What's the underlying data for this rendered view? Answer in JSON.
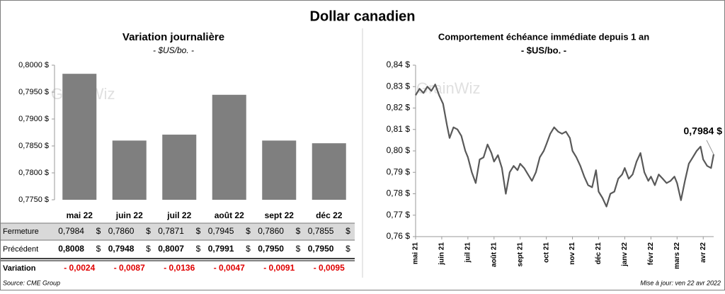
{
  "title": "Dollar canadien",
  "watermark": "GrainWiz",
  "source": "Source: CME Group",
  "updated": "Mise à jour: ven 22 avr 2022",
  "chart_data": [
    {
      "type": "bar",
      "title": "Variation  journalière",
      "subtitle": "- $US/bo. -",
      "categories": [
        "mai 22",
        "juin 22",
        "juil 22",
        "août 22",
        "sept 22",
        "déc 22"
      ],
      "values": [
        0.7984,
        0.786,
        0.7871,
        0.7945,
        0.786,
        0.7855
      ],
      "color": "#7f7f7f",
      "ylim": [
        0.775,
        0.8
      ],
      "yticks": [
        {
          "value": 0.775,
          "label": "0,7750 $"
        },
        {
          "value": 0.78,
          "label": "0,7800 $"
        },
        {
          "value": 0.785,
          "label": "0,7850 $"
        },
        {
          "value": 0.79,
          "label": "0,7900 $"
        },
        {
          "value": 0.795,
          "label": "0,7950 $"
        },
        {
          "value": 0.8,
          "label": "0,8000 $"
        }
      ]
    },
    {
      "type": "line",
      "title": "Comportement échéance immédiate depuis 1 an",
      "subtitle": "- $US/bo. -",
      "annotation": "0,7984 $",
      "color": "#595959",
      "x": [
        0,
        0.15,
        0.3,
        0.45,
        0.6,
        0.75,
        0.9,
        1.05,
        1.2,
        1.3,
        1.45,
        1.6,
        1.75,
        1.9,
        2.0,
        2.15,
        2.3,
        2.45,
        2.6,
        2.75,
        2.9,
        3.0,
        3.15,
        3.3,
        3.45,
        3.6,
        3.75,
        3.9,
        4.0,
        4.15,
        4.3,
        4.45,
        4.6,
        4.75,
        4.9,
        5.0,
        5.15,
        5.3,
        5.45,
        5.6,
        5.75,
        5.9,
        6.0,
        6.15,
        6.3,
        6.45,
        6.6,
        6.75,
        6.9,
        7.0,
        7.15,
        7.3,
        7.45,
        7.6,
        7.75,
        7.9,
        8.0,
        8.15,
        8.3,
        8.45,
        8.6,
        8.75,
        8.9,
        9.0,
        9.15,
        9.3,
        9.45,
        9.6,
        9.75,
        9.9,
        10.0,
        10.15,
        10.3,
        10.45,
        10.6,
        10.75,
        10.9,
        11.0,
        11.15,
        11.3,
        11.4
      ],
      "values": [
        0.826,
        0.829,
        0.827,
        0.83,
        0.828,
        0.831,
        0.826,
        0.822,
        0.812,
        0.806,
        0.811,
        0.81,
        0.807,
        0.8,
        0.797,
        0.79,
        0.785,
        0.796,
        0.797,
        0.803,
        0.799,
        0.795,
        0.798,
        0.792,
        0.78,
        0.79,
        0.793,
        0.791,
        0.794,
        0.792,
        0.789,
        0.786,
        0.79,
        0.797,
        0.8,
        0.803,
        0.808,
        0.811,
        0.809,
        0.808,
        0.809,
        0.806,
        0.8,
        0.797,
        0.793,
        0.788,
        0.784,
        0.783,
        0.791,
        0.781,
        0.778,
        0.774,
        0.78,
        0.781,
        0.787,
        0.789,
        0.792,
        0.787,
        0.789,
        0.795,
        0.799,
        0.79,
        0.786,
        0.788,
        0.784,
        0.789,
        0.787,
        0.785,
        0.786,
        0.788,
        0.785,
        0.777,
        0.786,
        0.794,
        0.797,
        0.8,
        0.802,
        0.796,
        0.793,
        0.792,
        0.7984
      ],
      "xlim": [
        0,
        11.4
      ],
      "xticks": [
        {
          "value": 0,
          "label": "mai 21"
        },
        {
          "value": 1,
          "label": "juin 21"
        },
        {
          "value": 2,
          "label": "juil 21"
        },
        {
          "value": 3,
          "label": "août 21"
        },
        {
          "value": 4,
          "label": "sept 21"
        },
        {
          "value": 5,
          "label": "oct 21"
        },
        {
          "value": 6,
          "label": "nov 21"
        },
        {
          "value": 7,
          "label": "déc 21"
        },
        {
          "value": 8,
          "label": "janv 22"
        },
        {
          "value": 9,
          "label": "févr 22"
        },
        {
          "value": 10,
          "label": "mars 22"
        },
        {
          "value": 11,
          "label": "avr 22"
        }
      ],
      "ylim": [
        0.76,
        0.84
      ],
      "yticks": [
        {
          "value": 0.76,
          "label": "0,76 $"
        },
        {
          "value": 0.77,
          "label": "0,77 $"
        },
        {
          "value": 0.78,
          "label": "0,78 $"
        },
        {
          "value": 0.79,
          "label": "0,79 $"
        },
        {
          "value": 0.8,
          "label": "0,80 $"
        },
        {
          "value": 0.81,
          "label": "0,81 $"
        },
        {
          "value": 0.82,
          "label": "0,82 $"
        },
        {
          "value": 0.83,
          "label": "0,83 $"
        },
        {
          "value": 0.84,
          "label": "0,84 $"
        }
      ]
    }
  ],
  "table": {
    "rows": [
      {
        "label": "Fermeture",
        "unit": "$",
        "cells": [
          "0,7984",
          "0,7860",
          "0,7871",
          "0,7945",
          "0,7860",
          "0,7855"
        ]
      },
      {
        "label": "Précédent",
        "unit": "$",
        "cells": [
          "0,8008",
          "0,7948",
          "0,8007",
          "0,7991",
          "0,7950",
          "0,7950"
        ]
      },
      {
        "label": "Variation",
        "cells": [
          "- 0,0024",
          "- 0,0087",
          "- 0,0136",
          "- 0,0047",
          "- 0,0091",
          "- 0,0095"
        ]
      }
    ]
  }
}
